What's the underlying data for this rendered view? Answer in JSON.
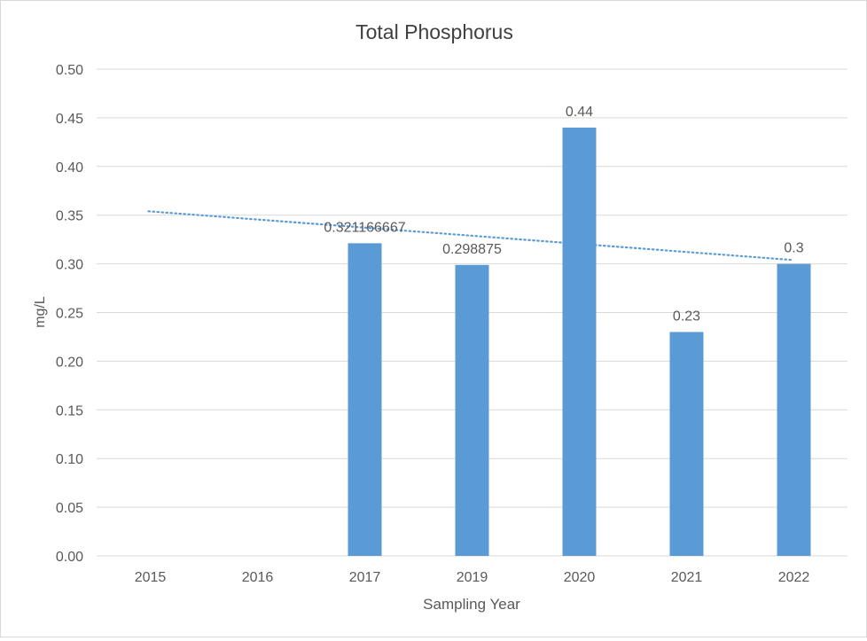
{
  "chart_data": {
    "type": "bar",
    "title": "Total Phosphorus",
    "xlabel": "Sampling Year",
    "ylabel": "mg/L",
    "categories": [
      "2015",
      "2016",
      "2017",
      "2019",
      "2020",
      "2021",
      "2022"
    ],
    "values": [
      null,
      null,
      0.321166667,
      0.298875,
      0.44,
      0.23,
      0.3
    ],
    "data_labels": [
      "",
      "",
      "0.321166667",
      "0.298875",
      "0.44",
      "0.23",
      "0.3"
    ],
    "ylim": [
      0,
      0.5
    ],
    "yticks": [
      "0.00",
      "0.05",
      "0.10",
      "0.15",
      "0.20",
      "0.25",
      "0.30",
      "0.35",
      "0.40",
      "0.45",
      "0.50"
    ],
    "trendline": {
      "type": "linear",
      "style": "dotted",
      "start_value": 0.354,
      "end_value": 0.304
    },
    "grid": true,
    "legend": "none",
    "colors": {
      "bar": "#5b9bd5",
      "trendline": "#5b9bd5",
      "grid": "#d9d9d9",
      "text": "#595959",
      "title": "#404040"
    }
  }
}
